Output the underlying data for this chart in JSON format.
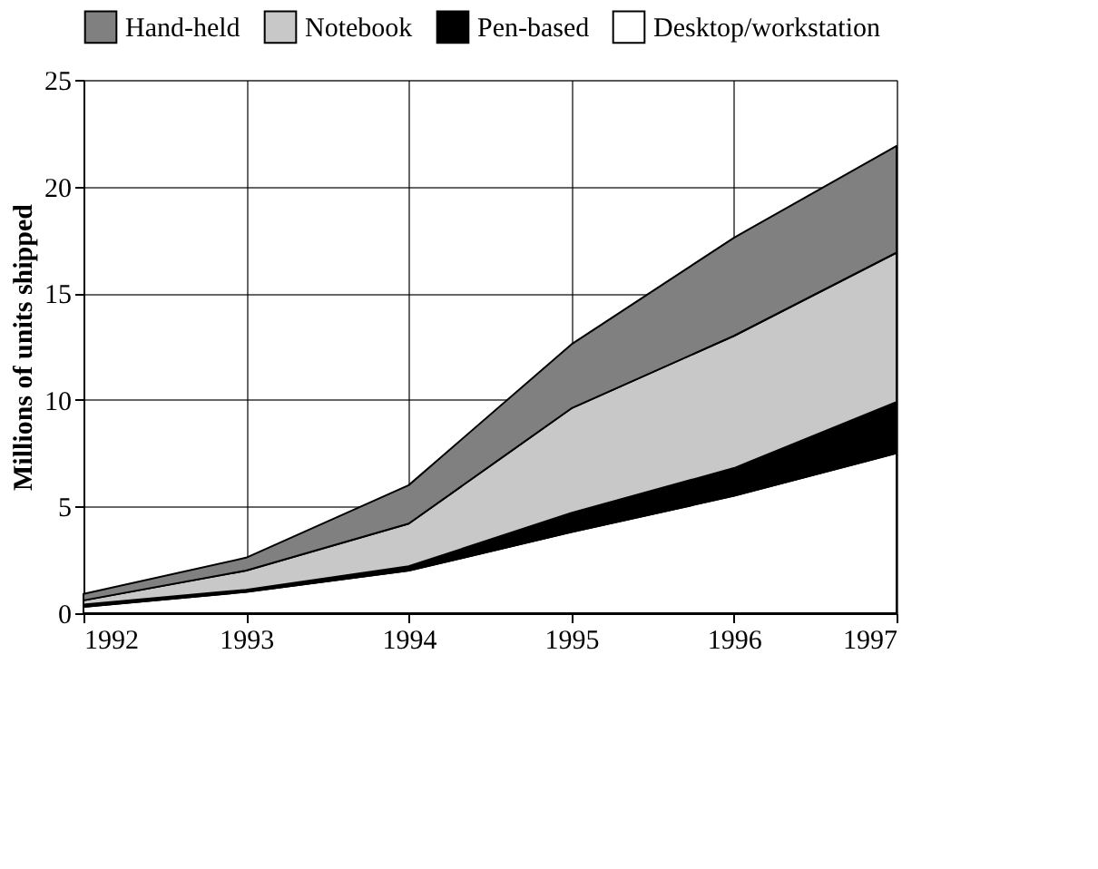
{
  "chart_data": {
    "type": "area",
    "stacked": true,
    "ylabel": "Millions of units shipped",
    "x": [
      1992,
      1993,
      1994,
      1995,
      1996,
      1997
    ],
    "series": [
      {
        "name": "Desktop/workstation",
        "color": "#ffffff",
        "values": [
          0.3,
          1.0,
          2.0,
          3.8,
          5.5,
          7.5
        ]
      },
      {
        "name": "Pen-based",
        "color": "#000000",
        "values": [
          0.1,
          0.1,
          0.2,
          0.9,
          1.3,
          2.4
        ]
      },
      {
        "name": "Notebook",
        "color": "#c8c8c8",
        "values": [
          0.2,
          0.9,
          2.0,
          4.9,
          6.2,
          7.0
        ]
      },
      {
        "name": "Hand-held",
        "color": "#808080",
        "values": [
          0.3,
          0.6,
          1.8,
          3.0,
          4.6,
          5.0
        ]
      }
    ],
    "xlim": [
      1992,
      1997
    ],
    "xticks": [
      1992,
      1993,
      1994,
      1995,
      1996,
      1997
    ],
    "ylim": [
      0,
      25
    ],
    "yticks": [
      0,
      5,
      10,
      15,
      20,
      25
    ],
    "grid": true,
    "legend": "top"
  }
}
